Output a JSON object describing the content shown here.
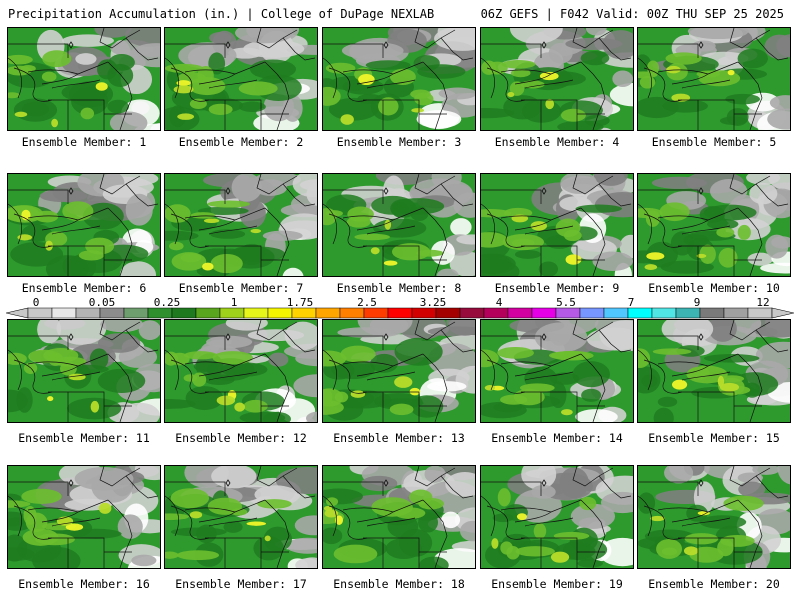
{
  "header": {
    "title_left": "Precipitation Accumulation (in.) | College of DuPage NEXLAB",
    "title_right": "06Z GEFS | F042 Valid: 00Z THU SEP 25 2025"
  },
  "panels": [
    {
      "label": "Ensemble Member: 1",
      "style": 0
    },
    {
      "label": "Ensemble Member: 2",
      "style": 1
    },
    {
      "label": "Ensemble Member: 3",
      "style": 2
    },
    {
      "label": "Ensemble Member: 4",
      "style": 3
    },
    {
      "label": "Ensemble Member: 5",
      "style": 4
    },
    {
      "label": "Ensemble Member: 6",
      "style": 5
    },
    {
      "label": "Ensemble Member: 7",
      "style": 6
    },
    {
      "label": "Ensemble Member: 8",
      "style": 7
    },
    {
      "label": "Ensemble Member: 9",
      "style": 8
    },
    {
      "label": "Ensemble Member: 10",
      "style": 9
    },
    {
      "label": "Ensemble Member: 11",
      "style": 10
    },
    {
      "label": "Ensemble Member: 12",
      "style": 11
    },
    {
      "label": "Ensemble Member: 13",
      "style": 12
    },
    {
      "label": "Ensemble Member: 14",
      "style": 13
    },
    {
      "label": "Ensemble Member: 15",
      "style": 14
    },
    {
      "label": "Ensemble Member: 16",
      "style": 15
    },
    {
      "label": "Ensemble Member: 17",
      "style": 16
    },
    {
      "label": "Ensemble Member: 18",
      "style": 17
    },
    {
      "label": "Ensemble Member: 19",
      "style": 18
    },
    {
      "label": "Ensemble Member: 20",
      "style": 19
    }
  ],
  "colorbar": {
    "tick_labels": [
      "0",
      "0.05",
      "0.25",
      "1",
      "1.75",
      "2.5",
      "3.25",
      "4",
      "5.5",
      "7",
      "9",
      "12"
    ],
    "colors": [
      "#c8c8c8",
      "#e8e8e8",
      "#b4b4b4",
      "#8c8c8c",
      "#6e9e6e",
      "#2f8f2f",
      "#1f7a1f",
      "#5aa51e",
      "#9fd11a",
      "#e6f51a",
      "#f5f500",
      "#ffd200",
      "#ffa500",
      "#ff7f00",
      "#ff3c00",
      "#ff0000",
      "#d20000",
      "#a50000",
      "#960a3c",
      "#b4005a",
      "#d200a0",
      "#e600e6",
      "#b45ae6",
      "#7896ff",
      "#50c8ff",
      "#00ffff",
      "#50e6e6",
      "#3cb4b4",
      "#7a7a7a",
      "#a0a0a0",
      "#c8c8c8"
    ]
  },
  "map_colors": {
    "gray_light": "#d2d2d2",
    "gray_mid": "#a8a8a8",
    "gray_dark": "#808080",
    "green_dark": "#1e7b1e",
    "green_mid": "#2e9a2e",
    "green_light": "#6cbf2e",
    "yellow_green": "#b8dc2a",
    "yellow": "#f0f52a"
  }
}
